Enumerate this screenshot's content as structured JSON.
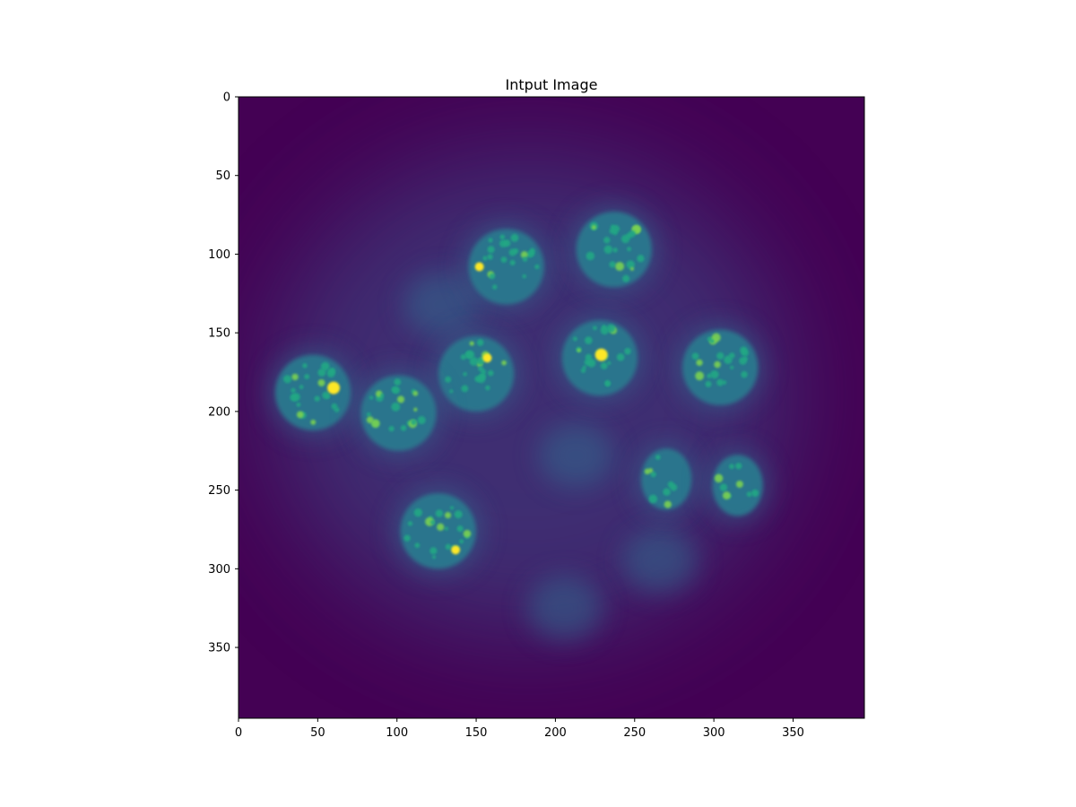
{
  "figure": {
    "title": "Intput Image",
    "colormap": "viridis",
    "image_shape": [
      395,
      395
    ],
    "colors": {
      "background": "#440154",
      "haze": "#3b528b",
      "dim_cell": "#31688e",
      "cell_body": "#2a788e",
      "speckle": "#22a884",
      "bright_speckle": "#7ad151",
      "hotspot": "#fde725"
    }
  },
  "chart_data": {
    "type": "image",
    "title": "Intput Image",
    "xlabel": "",
    "ylabel": "",
    "xlim": [
      0,
      395
    ],
    "ylim": [
      395,
      0
    ],
    "xticks": [
      0,
      50,
      100,
      150,
      200,
      250,
      300,
      350
    ],
    "yticks": [
      0,
      50,
      100,
      150,
      200,
      250,
      300,
      350
    ],
    "grid": false,
    "bright_nuclei_center_xy": [
      [
        169,
        108
      ],
      [
        237,
        97
      ],
      [
        228,
        166
      ],
      [
        304,
        172
      ],
      [
        150,
        176
      ],
      [
        47,
        188
      ],
      [
        101,
        201
      ],
      [
        126,
        276
      ],
      [
        270,
        243
      ],
      [
        315,
        247
      ]
    ],
    "faint_nuclei_center_xy": [
      [
        213,
        228
      ],
      [
        266,
        295
      ],
      [
        206,
        325
      ],
      [
        128,
        132
      ]
    ],
    "hotspots_xy": [
      [
        60,
        185
      ],
      [
        229,
        164
      ],
      [
        157,
        166
      ],
      [
        137,
        288
      ],
      [
        152,
        108
      ]
    ]
  }
}
